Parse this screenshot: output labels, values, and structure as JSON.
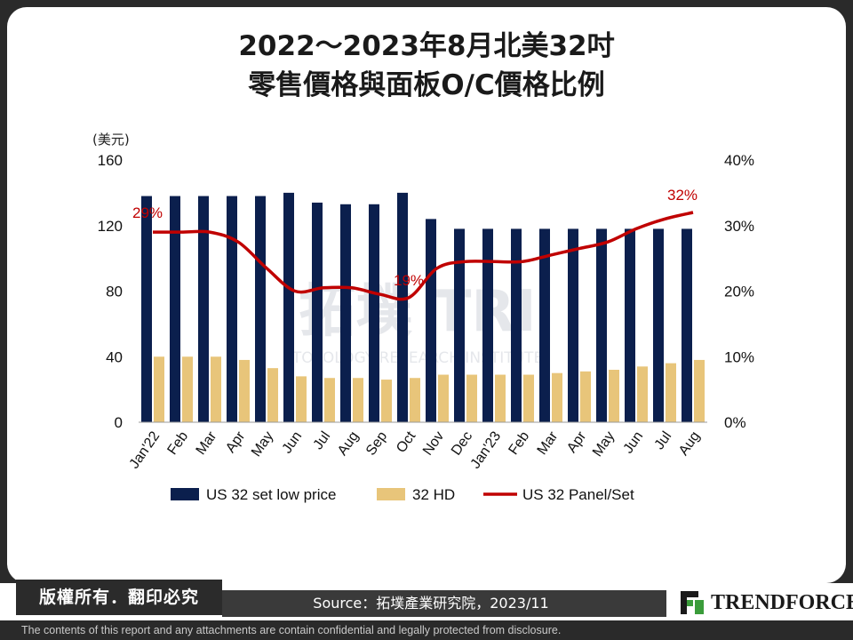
{
  "title_line1": "2022～2023年8月北美32吋",
  "title_line2": "零售價格與面板O/C價格比例",
  "chart_data": {
    "type": "bar",
    "title": "2022～2023年8月北美32吋零售價格與面板O/C價格比例",
    "y_unit": "(美元)",
    "categories": [
      "Jan'22",
      "Feb",
      "Mar",
      "Apr",
      "May",
      "Jun",
      "Jul",
      "Aug",
      "Sep",
      "Oct",
      "Nov",
      "Dec",
      "Jan'23",
      "Feb",
      "Mar",
      "Apr",
      "May",
      "Jun",
      "Jul",
      "Aug"
    ],
    "series": [
      {
        "name": "US 32 set low price",
        "axis": "left",
        "kind": "bar",
        "color": "#0b1f4d",
        "values": [
          138,
          138,
          138,
          138,
          138,
          140,
          134,
          133,
          133,
          140,
          124,
          118,
          118,
          118,
          118,
          118,
          118,
          118,
          118,
          118
        ]
      },
      {
        "name": "32 HD",
        "axis": "left",
        "kind": "bar",
        "color": "#e8c57a",
        "values": [
          40,
          40,
          40,
          38,
          33,
          28,
          27,
          27,
          26,
          27,
          29,
          29,
          29,
          29,
          30,
          31,
          32,
          34,
          36,
          38
        ]
      },
      {
        "name": "US 32 Panel/Set",
        "axis": "right",
        "kind": "line",
        "color": "#c00000",
        "values": [
          29,
          29,
          29,
          27.5,
          23.5,
          20,
          20.5,
          20.5,
          19.5,
          19,
          23.5,
          24.5,
          24.5,
          24.5,
          25.5,
          26.5,
          27.5,
          29.5,
          31,
          32
        ]
      }
    ],
    "ylim_left": [
      0,
      160
    ],
    "yticks_left": [
      "0",
      "40",
      "80",
      "120",
      "160"
    ],
    "ylim_right": [
      0,
      40
    ],
    "yticks_right": [
      "0%",
      "10%",
      "20%",
      "30%",
      "40%"
    ],
    "annotations": [
      {
        "index": 0,
        "label": "29%"
      },
      {
        "index": 9,
        "label": "19%"
      },
      {
        "index": 19,
        "label": "32%"
      }
    ],
    "legend_position": "bottom",
    "grid": false,
    "watermark_text": "TOPOLOGY RESEARCH INSTITUTE"
  },
  "footer": {
    "copyright": "版權所有．翻印必究",
    "source": "Source：拓墣產業研究院，2023/11",
    "logo_text": "TRENDFORCE",
    "disclaimer": "The contents of this report and any attachments are contain confidential and legally protected from disclosure."
  }
}
